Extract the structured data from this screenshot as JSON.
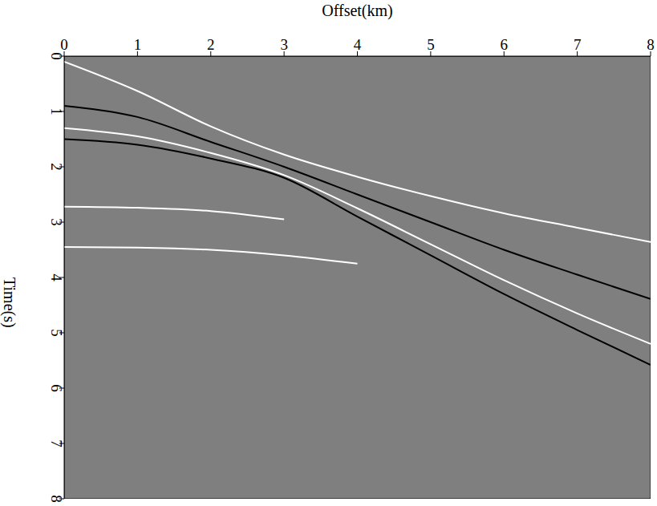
{
  "chart_data": {
    "type": "line",
    "xlabel": "Offset(km)",
    "ylabel": "Time(s)",
    "x": [
      0,
      1,
      2,
      3,
      4,
      5,
      6,
      7,
      8
    ],
    "series": [
      {
        "color": "#ffffff",
        "values": [
          0.1,
          0.63,
          1.27,
          1.78,
          2.18,
          2.53,
          2.84,
          3.1,
          3.36
        ]
      },
      {
        "color": "#000000",
        "values": [
          0.9,
          1.1,
          1.55,
          2.0,
          2.5,
          3.0,
          3.5,
          3.95,
          4.39
        ]
      },
      {
        "color": "#ffffff",
        "values": [
          1.3,
          1.45,
          1.75,
          2.15,
          2.75,
          3.4,
          4.05,
          4.65,
          5.2
        ]
      },
      {
        "color": "#000000",
        "values": [
          1.5,
          1.6,
          1.85,
          2.2,
          2.9,
          3.6,
          4.3,
          4.95,
          5.58
        ]
      },
      {
        "color": "#ffffff",
        "values": [
          2.72,
          2.74,
          2.8,
          2.95,
          null,
          null,
          null,
          null,
          null
        ]
      },
      {
        "color": "#ffffff",
        "values": [
          3.45,
          3.46,
          3.5,
          3.6,
          3.75,
          null,
          null,
          null,
          null
        ]
      }
    ],
    "xlim": [
      0,
      8
    ],
    "ylim": [
      0,
      8
    ],
    "xticks": [
      0,
      1,
      2,
      3,
      4,
      5,
      6,
      7,
      8
    ],
    "yticks": [
      0,
      1,
      2,
      3,
      4,
      5,
      6,
      7,
      8
    ]
  }
}
